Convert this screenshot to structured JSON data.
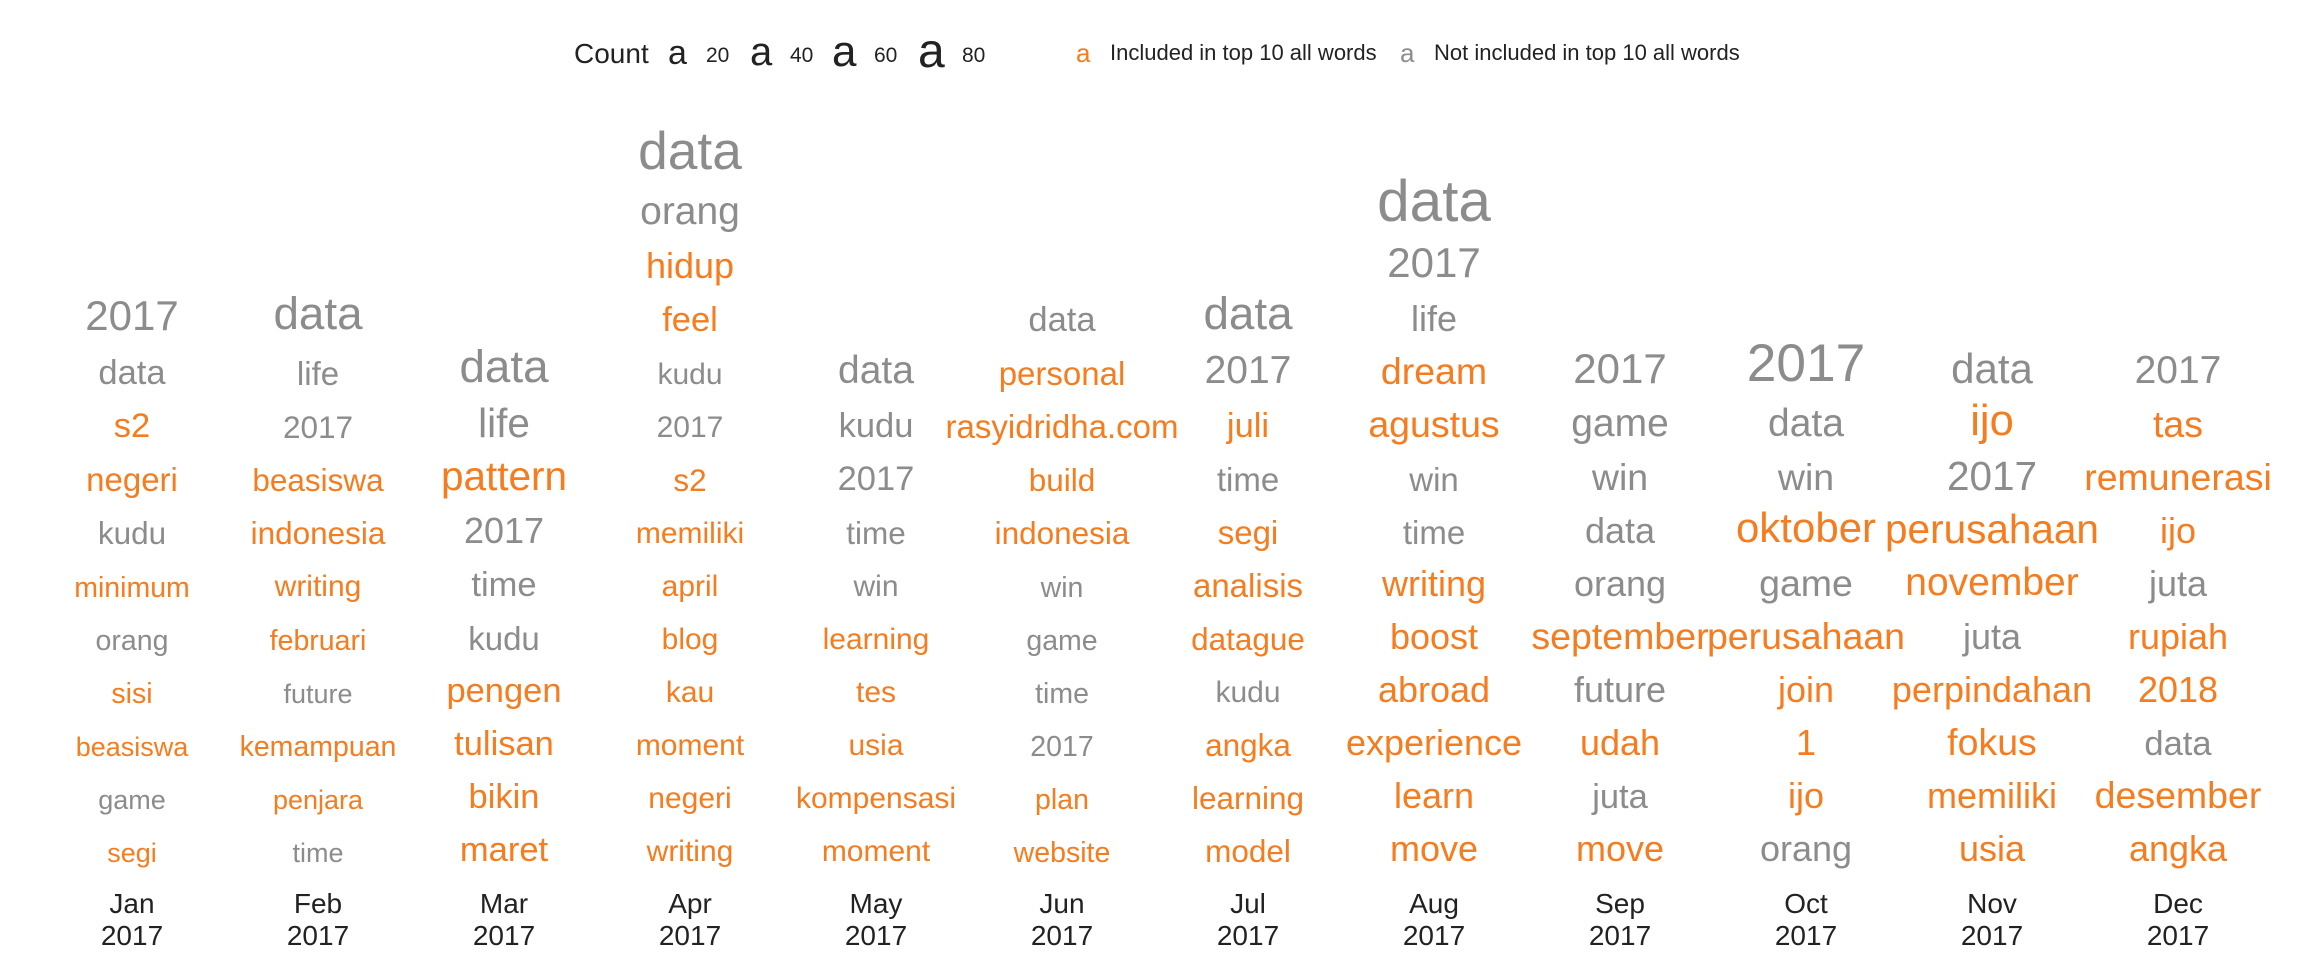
{
  "legend": {
    "count_title": "Count",
    "size_glyph": "a",
    "size_values": [
      "20",
      "40",
      "60",
      "80"
    ],
    "included_label": "Included in top 10 all words",
    "not_included_label": "Not included in top 10 all words"
  },
  "colors": {
    "included": "#f57c1f",
    "not_included": "#8c8c8c",
    "text": "#222222"
  },
  "chart_data": {
    "type": "word-frequency-columns",
    "size_encoding": "count",
    "color_encoding": "included in top 10 all words",
    "months": [
      {
        "label": "Jan",
        "year": "2017",
        "words": [
          {
            "word": "2017",
            "count": 40,
            "top10": false
          },
          {
            "word": "data",
            "count": 30,
            "top10": false
          },
          {
            "word": "s2",
            "count": 30,
            "top10": true
          },
          {
            "word": "negeri",
            "count": 28,
            "top10": true
          },
          {
            "word": "kudu",
            "count": 26,
            "top10": false
          },
          {
            "word": "minimum",
            "count": 22,
            "top10": true
          },
          {
            "word": "orang",
            "count": 22,
            "top10": false
          },
          {
            "word": "sisi",
            "count": 22,
            "top10": true
          },
          {
            "word": "beasiswa",
            "count": 20,
            "top10": true
          },
          {
            "word": "game",
            "count": 20,
            "top10": false
          },
          {
            "word": "segi",
            "count": 20,
            "top10": true
          }
        ]
      },
      {
        "label": "Feb",
        "year": "2017",
        "words": [
          {
            "word": "data",
            "count": 45,
            "top10": false
          },
          {
            "word": "life",
            "count": 28,
            "top10": false
          },
          {
            "word": "2017",
            "count": 26,
            "top10": false
          },
          {
            "word": "beasiswa",
            "count": 26,
            "top10": true
          },
          {
            "word": "indonesia",
            "count": 26,
            "top10": true
          },
          {
            "word": "writing",
            "count": 24,
            "top10": true
          },
          {
            "word": "februari",
            "count": 22,
            "top10": true
          },
          {
            "word": "future",
            "count": 20,
            "top10": false
          },
          {
            "word": "kemampuan",
            "count": 22,
            "top10": true
          },
          {
            "word": "penjara",
            "count": 20,
            "top10": true
          },
          {
            "word": "time",
            "count": 20,
            "top10": false
          }
        ]
      },
      {
        "label": "Mar",
        "year": "2017",
        "words": [
          {
            "word": "data",
            "count": 45,
            "top10": false
          },
          {
            "word": "life",
            "count": 38,
            "top10": false
          },
          {
            "word": "pattern",
            "count": 38,
            "top10": true
          },
          {
            "word": "2017",
            "count": 32,
            "top10": false
          },
          {
            "word": "time",
            "count": 30,
            "top10": false
          },
          {
            "word": "kudu",
            "count": 28,
            "top10": false
          },
          {
            "word": "pengen",
            "count": 30,
            "top10": true
          },
          {
            "word": "tulisan",
            "count": 30,
            "top10": true
          },
          {
            "word": "bikin",
            "count": 30,
            "top10": true
          },
          {
            "word": "maret",
            "count": 30,
            "top10": true
          }
        ]
      },
      {
        "label": "Apr",
        "year": "2017",
        "words": [
          {
            "word": "data",
            "count": 55,
            "top10": false
          },
          {
            "word": "orang",
            "count": 36,
            "top10": false
          },
          {
            "word": "hidup",
            "count": 32,
            "top10": true
          },
          {
            "word": "feel",
            "count": 30,
            "top10": true
          },
          {
            "word": "kudu",
            "count": 24,
            "top10": false
          },
          {
            "word": "2017",
            "count": 24,
            "top10": false
          },
          {
            "word": "s2",
            "count": 26,
            "top10": true
          },
          {
            "word": "memiliki",
            "count": 24,
            "top10": true
          },
          {
            "word": "april",
            "count": 24,
            "top10": true
          },
          {
            "word": "blog",
            "count": 24,
            "top10": true
          },
          {
            "word": "kau",
            "count": 24,
            "top10": true
          },
          {
            "word": "moment",
            "count": 24,
            "top10": true
          },
          {
            "word": "negeri",
            "count": 24,
            "top10": true
          },
          {
            "word": "writing",
            "count": 24,
            "top10": true
          }
        ]
      },
      {
        "label": "May",
        "year": "2017",
        "words": [
          {
            "word": "data",
            "count": 36,
            "top10": false
          },
          {
            "word": "kudu",
            "count": 30,
            "top10": false
          },
          {
            "word": "2017",
            "count": 30,
            "top10": false
          },
          {
            "word": "time",
            "count": 26,
            "top10": false
          },
          {
            "word": "win",
            "count": 24,
            "top10": false
          },
          {
            "word": "learning",
            "count": 24,
            "top10": true
          },
          {
            "word": "tes",
            "count": 24,
            "top10": true
          },
          {
            "word": "usia",
            "count": 24,
            "top10": true
          },
          {
            "word": "kompensasi",
            "count": 24,
            "top10": true
          },
          {
            "word": "moment",
            "count": 24,
            "top10": true
          }
        ]
      },
      {
        "label": "Jun",
        "year": "2017",
        "words": [
          {
            "word": "data",
            "count": 30,
            "top10": false
          },
          {
            "word": "personal",
            "count": 28,
            "top10": true
          },
          {
            "word": "rasyidridha.com",
            "count": 28,
            "top10": true
          },
          {
            "word": "build",
            "count": 26,
            "top10": true
          },
          {
            "word": "indonesia",
            "count": 26,
            "top10": true
          },
          {
            "word": "win",
            "count": 22,
            "top10": false
          },
          {
            "word": "game",
            "count": 22,
            "top10": false
          },
          {
            "word": "time",
            "count": 22,
            "top10": false
          },
          {
            "word": "2017",
            "count": 22,
            "top10": false
          },
          {
            "word": "plan",
            "count": 22,
            "top10": true
          },
          {
            "word": "website",
            "count": 22,
            "top10": true
          }
        ]
      },
      {
        "label": "Jul",
        "year": "2017",
        "words": [
          {
            "word": "data",
            "count": 45,
            "top10": false
          },
          {
            "word": "2017",
            "count": 36,
            "top10": false
          },
          {
            "word": "juli",
            "count": 30,
            "top10": true
          },
          {
            "word": "time",
            "count": 28,
            "top10": false
          },
          {
            "word": "segi",
            "count": 28,
            "top10": true
          },
          {
            "word": "analisis",
            "count": 28,
            "top10": true
          },
          {
            "word": "datague",
            "count": 26,
            "top10": true
          },
          {
            "word": "kudu",
            "count": 24,
            "top10": false
          },
          {
            "word": "angka",
            "count": 26,
            "top10": true
          },
          {
            "word": "learning",
            "count": 26,
            "top10": true
          },
          {
            "word": "model",
            "count": 26,
            "top10": true
          }
        ]
      },
      {
        "label": "Aug",
        "year": "2017",
        "words": [
          {
            "word": "data",
            "count": 62,
            "top10": false
          },
          {
            "word": "2017",
            "count": 40,
            "top10": false
          },
          {
            "word": "life",
            "count": 32,
            "top10": false
          },
          {
            "word": "dream",
            "count": 34,
            "top10": true
          },
          {
            "word": "agustus",
            "count": 34,
            "top10": true
          },
          {
            "word": "win",
            "count": 28,
            "top10": false
          },
          {
            "word": "time",
            "count": 28,
            "top10": false
          },
          {
            "word": "writing",
            "count": 32,
            "top10": true
          },
          {
            "word": "boost",
            "count": 32,
            "top10": true
          },
          {
            "word": "abroad",
            "count": 32,
            "top10": true
          },
          {
            "word": "experience",
            "count": 32,
            "top10": true
          },
          {
            "word": "learn",
            "count": 32,
            "top10": true
          },
          {
            "word": "move",
            "count": 32,
            "top10": true
          }
        ]
      },
      {
        "label": "Sep",
        "year": "2017",
        "words": [
          {
            "word": "2017",
            "count": 40,
            "top10": false
          },
          {
            "word": "game",
            "count": 36,
            "top10": false
          },
          {
            "word": "win",
            "count": 34,
            "top10": false
          },
          {
            "word": "data",
            "count": 32,
            "top10": false
          },
          {
            "word": "orang",
            "count": 32,
            "top10": false
          },
          {
            "word": "september",
            "count": 34,
            "top10": true
          },
          {
            "word": "future",
            "count": 32,
            "top10": false
          },
          {
            "word": "udah",
            "count": 32,
            "top10": true
          },
          {
            "word": "juta",
            "count": 30,
            "top10": false
          },
          {
            "word": "move",
            "count": 32,
            "top10": true
          }
        ]
      },
      {
        "label": "Oct",
        "year": "2017",
        "words": [
          {
            "word": "2017",
            "count": 55,
            "top10": false
          },
          {
            "word": "data",
            "count": 36,
            "top10": false
          },
          {
            "word": "win",
            "count": 34,
            "top10": false
          },
          {
            "word": "oktober",
            "count": 40,
            "top10": true
          },
          {
            "word": "game",
            "count": 34,
            "top10": false
          },
          {
            "word": "perusahaan",
            "count": 34,
            "top10": true
          },
          {
            "word": "join",
            "count": 32,
            "top10": true
          },
          {
            "word": "1",
            "count": 32,
            "top10": true
          },
          {
            "word": "ijo",
            "count": 32,
            "top10": true
          },
          {
            "word": "orang",
            "count": 32,
            "top10": false
          }
        ]
      },
      {
        "label": "Nov",
        "year": "2017",
        "words": [
          {
            "word": "data",
            "count": 40,
            "top10": false
          },
          {
            "word": "ijo",
            "count": 42,
            "top10": true
          },
          {
            "word": "2017",
            "count": 38,
            "top10": false
          },
          {
            "word": "perusahaan",
            "count": 38,
            "top10": true
          },
          {
            "word": "november",
            "count": 36,
            "top10": true
          },
          {
            "word": "juta",
            "count": 32,
            "top10": false
          },
          {
            "word": "perpindahan",
            "count": 32,
            "top10": true
          },
          {
            "word": "fokus",
            "count": 34,
            "top10": true
          },
          {
            "word": "memiliki",
            "count": 32,
            "top10": true
          },
          {
            "word": "usia",
            "count": 32,
            "top10": true
          }
        ]
      },
      {
        "label": "Dec",
        "year": "2017",
        "words": [
          {
            "word": "2017",
            "count": 36,
            "top10": false
          },
          {
            "word": "tas",
            "count": 34,
            "top10": true
          },
          {
            "word": "remunerasi",
            "count": 34,
            "top10": true
          },
          {
            "word": "ijo",
            "count": 32,
            "top10": true
          },
          {
            "word": "juta",
            "count": 32,
            "top10": false
          },
          {
            "word": "rupiah",
            "count": 32,
            "top10": true
          },
          {
            "word": "2018",
            "count": 32,
            "top10": true
          },
          {
            "word": "data",
            "count": 30,
            "top10": false
          },
          {
            "word": "desember",
            "count": 34,
            "top10": true
          },
          {
            "word": "angka",
            "count": 32,
            "top10": true
          }
        ]
      }
    ]
  }
}
